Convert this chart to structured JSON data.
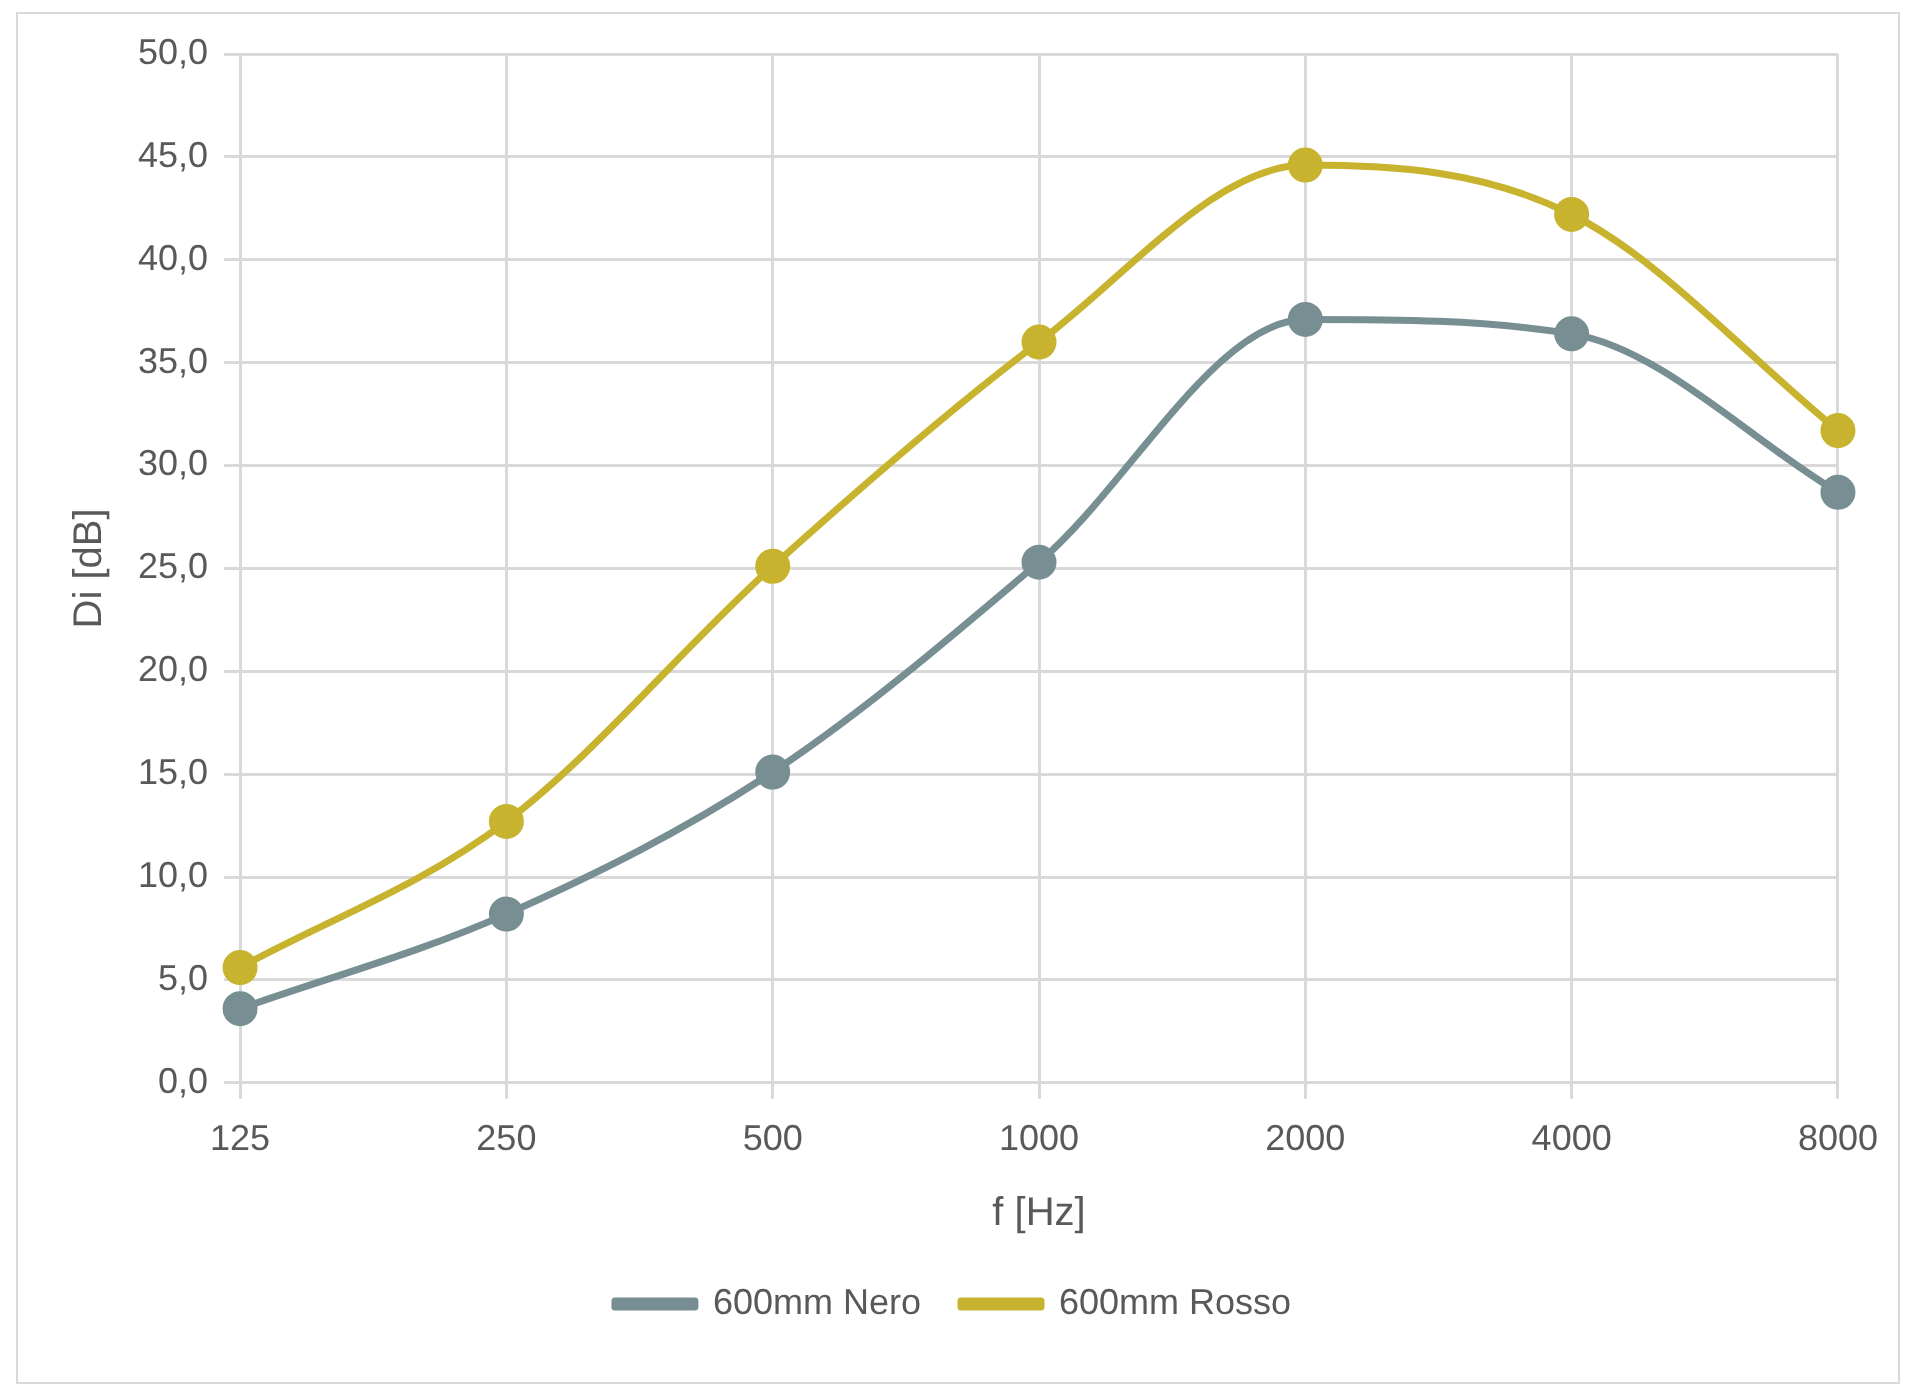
{
  "chart_data": {
    "type": "line",
    "xlabel": "f [Hz]",
    "ylabel": "Di [dB]",
    "categories": [
      "125",
      "250",
      "500",
      "1000",
      "2000",
      "4000",
      "8000"
    ],
    "series": [
      {
        "name": "600mm Nero",
        "color": "#778f93",
        "values": [
          3.6,
          8.2,
          15.1,
          25.3,
          37.1,
          36.4,
          28.7
        ]
      },
      {
        "name": "600mm Rosso",
        "color": "#c8b32e",
        "values": [
          5.6,
          12.7,
          25.1,
          36.0,
          44.6,
          42.2,
          31.7
        ]
      }
    ],
    "ylim": [
      0,
      50
    ],
    "yticks": [
      {
        "value": 0,
        "label": "0,0"
      },
      {
        "value": 5,
        "label": "5,0"
      },
      {
        "value": 10,
        "label": "10,0"
      },
      {
        "value": 15,
        "label": "15,0"
      },
      {
        "value": 20,
        "label": "20,0"
      },
      {
        "value": 25,
        "label": "25,0"
      },
      {
        "value": 30,
        "label": "30,0"
      },
      {
        "value": 35,
        "label": "35,0"
      },
      {
        "value": 40,
        "label": "40,0"
      },
      {
        "value": 45,
        "label": "45,0"
      },
      {
        "value": 50,
        "label": "50,0"
      }
    ],
    "grid": true,
    "legend": "bottom",
    "marker": "circle",
    "line_style": "solid"
  }
}
